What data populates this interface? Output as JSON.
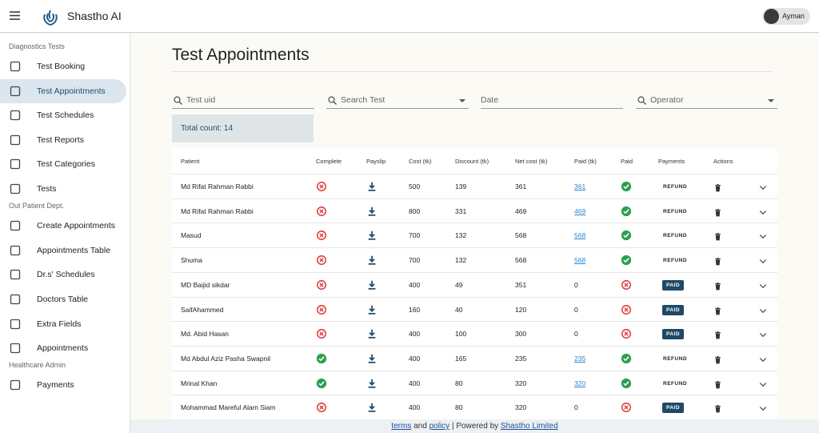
{
  "header": {
    "app_name": "Shastho AI",
    "user": "Ayman"
  },
  "sidebar": {
    "sections": [
      {
        "title": "Diagnostics Tests",
        "items": [
          "Test Booking",
          "Test Appointments",
          "Test Schedules",
          "Test Reports",
          "Test Categories",
          "Tests"
        ]
      },
      {
        "title": "Out Patient Dept.",
        "items": [
          "Create Appointments",
          "Appointments Table",
          "Dr.s' Schedules",
          "Doctors Table",
          "Extra Fields",
          "Appointments"
        ]
      },
      {
        "title": "Healthcare Admin",
        "items": [
          "Payments"
        ]
      }
    ]
  },
  "page": {
    "title": "Test Appointments",
    "filters": [
      "Test uid",
      "Search Test",
      "Date",
      "Operator"
    ],
    "total_count": "Total count: 14"
  },
  "table": {
    "columns": [
      "Patient",
      "Complete",
      "Payslip",
      "Cost (tk)",
      "Discount (tk)",
      "Net cost (tk)",
      "Paid (tk)",
      "Paid",
      "Payments",
      "Actions"
    ],
    "rows": [
      {
        "patient": "Md Rifat Rahman Rabbi",
        "complete": false,
        "cost": "500",
        "discount": "139",
        "net_cost": "361",
        "paid_tk": "361",
        "paid": true,
        "payments": "REFUND"
      },
      {
        "patient": "Md Rifat Rahman Rabbi",
        "complete": false,
        "cost": "800",
        "discount": "331",
        "net_cost": "469",
        "paid_tk": "469",
        "paid": true,
        "payments": "REFUND"
      },
      {
        "patient": "Masud",
        "complete": false,
        "cost": "700",
        "discount": "132",
        "net_cost": "568",
        "paid_tk": "568",
        "paid": true,
        "payments": "REFUND"
      },
      {
        "patient": "Shuma",
        "complete": false,
        "cost": "700",
        "discount": "132",
        "net_cost": "568",
        "paid_tk": "568",
        "paid": true,
        "payments": "REFUND"
      },
      {
        "patient": "MD Baijid sikdar",
        "complete": false,
        "cost": "400",
        "discount": "49",
        "net_cost": "351",
        "paid_tk": "0",
        "paid": false,
        "payments": "PAID"
      },
      {
        "patient": "SaifAhammed",
        "complete": false,
        "cost": "160",
        "discount": "40",
        "net_cost": "120",
        "paid_tk": "0",
        "paid": false,
        "payments": "PAID"
      },
      {
        "patient": "Md. Abid Hasan",
        "complete": false,
        "cost": "400",
        "discount": "100",
        "net_cost": "300",
        "paid_tk": "0",
        "paid": false,
        "payments": "PAID"
      },
      {
        "patient": "Md Abdul Aziz Pasha Swapnil",
        "complete": true,
        "cost": "400",
        "discount": "165",
        "net_cost": "235",
        "paid_tk": "235",
        "paid": true,
        "payments": "REFUND"
      },
      {
        "patient": "Mrinal Khan",
        "complete": true,
        "cost": "400",
        "discount": "80",
        "net_cost": "320",
        "paid_tk": "320",
        "paid": true,
        "payments": "REFUND"
      },
      {
        "patient": "Mohammad Mareful Alam Siam",
        "complete": false,
        "cost": "400",
        "discount": "80",
        "net_cost": "320",
        "paid_tk": "0",
        "paid": false,
        "payments": "PAID"
      }
    ]
  },
  "footer": {
    "terms": "terms",
    "and": "and",
    "policy": "policy",
    "powered": "| Powered by",
    "company": "Shastho Limited"
  }
}
